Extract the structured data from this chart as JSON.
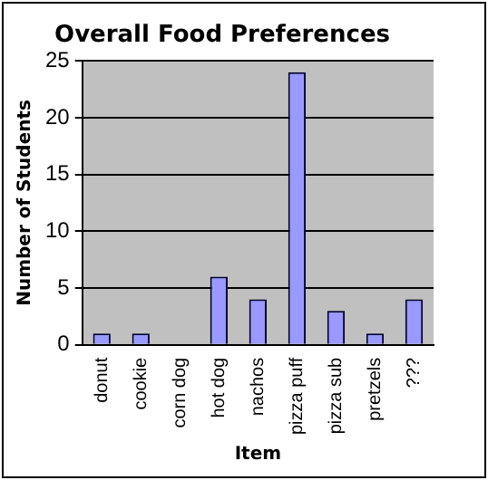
{
  "chart_data": {
    "type": "bar",
    "title": "Overall Food Preferences",
    "xlabel": "Item",
    "ylabel": "Number of Students",
    "categories": [
      "donut",
      "cookie",
      "corn dog",
      "hot dog",
      "nachos",
      "pizza puff",
      "pizza sub",
      "pretzels",
      "???"
    ],
    "values": [
      1,
      1,
      0,
      6,
      4,
      24,
      3,
      1,
      4
    ],
    "color": "#9999ff",
    "ylim": [
      0,
      25
    ],
    "yticks": [
      0,
      5,
      10,
      15,
      20,
      25
    ],
    "grid": "y",
    "legend": false
  }
}
